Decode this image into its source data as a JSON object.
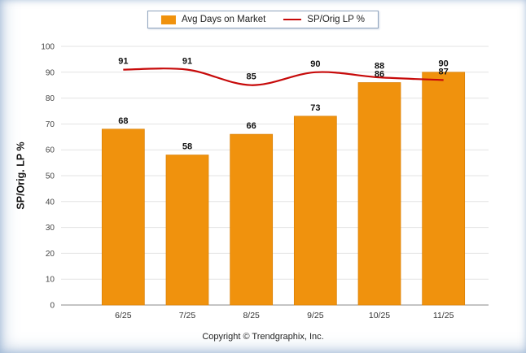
{
  "legend": {
    "items": [
      {
        "label": "Avg Days on Market",
        "marker": "square",
        "color": "#F0920D"
      },
      {
        "label": "SP/Orig LP %",
        "marker": "line",
        "color": "#C70A0A"
      }
    ]
  },
  "footer": {
    "copyright": "Copyright © Trendgraphix, Inc."
  },
  "chart_data": {
    "type": "bar",
    "categories": [
      "6/25",
      "7/25",
      "8/25",
      "9/25",
      "10/25",
      "11/25"
    ],
    "series": [
      {
        "name": "Avg Days on Market",
        "type": "bar",
        "color": "#F0920D",
        "values": [
          68,
          58,
          66,
          73,
          86,
          90
        ]
      },
      {
        "name": "SP/Orig LP %",
        "type": "line",
        "color": "#C70A0A",
        "values": [
          91,
          91,
          85,
          90,
          88,
          87
        ]
      }
    ],
    "title": "",
    "xlabel": "",
    "ylabel": "SP/Orig. LP %",
    "ylim": [
      0,
      100
    ],
    "yticks": [
      0,
      10,
      20,
      30,
      40,
      50,
      60,
      70,
      80,
      90,
      100
    ],
    "grid": true,
    "legend_position": "top-center"
  }
}
